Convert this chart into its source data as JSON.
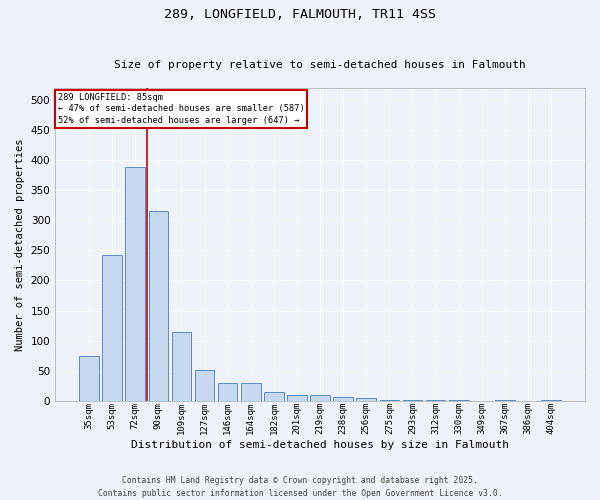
{
  "title1": "289, LONGFIELD, FALMOUTH, TR11 4SS",
  "title2": "Size of property relative to semi-detached houses in Falmouth",
  "xlabel": "Distribution of semi-detached houses by size in Falmouth",
  "ylabel": "Number of semi-detached properties",
  "categories": [
    "35sqm",
    "53sqm",
    "72sqm",
    "90sqm",
    "109sqm",
    "127sqm",
    "146sqm",
    "164sqm",
    "182sqm",
    "201sqm",
    "219sqm",
    "238sqm",
    "256sqm",
    "275sqm",
    "293sqm",
    "312sqm",
    "330sqm",
    "349sqm",
    "367sqm",
    "386sqm",
    "404sqm"
  ],
  "values": [
    75,
    243,
    388,
    315,
    114,
    51,
    30,
    30,
    15,
    9,
    9,
    7,
    4,
    2,
    1,
    1,
    1,
    0,
    1,
    0,
    1
  ],
  "bar_color": "#c6d9f0",
  "bar_edge_color": "#5a8ac6",
  "vline_pos": 2.5,
  "vline_color": "#cc0000",
  "annotation_title": "289 LONGFIELD: 85sqm",
  "annotation_line2": "← 47% of semi-detached houses are smaller (587)",
  "annotation_line3": "52% of semi-detached houses are larger (647) →",
  "annotation_box_color": "#ffffff",
  "annotation_box_edge": "#cc0000",
  "footer": "Contains HM Land Registry data © Crown copyright and database right 2025.\nContains public sector information licensed under the Open Government Licence v3.0.",
  "ylim": [
    0,
    520
  ],
  "background_color": "#eef2fb",
  "grid_color": "#ffffff",
  "title1_fontsize": 9.5,
  "title2_fontsize": 8.0,
  "ylabel_fontsize": 7.5,
  "xlabel_fontsize": 8.0,
  "yticks": [
    0,
    50,
    100,
    150,
    200,
    250,
    300,
    350,
    400,
    450,
    500
  ]
}
